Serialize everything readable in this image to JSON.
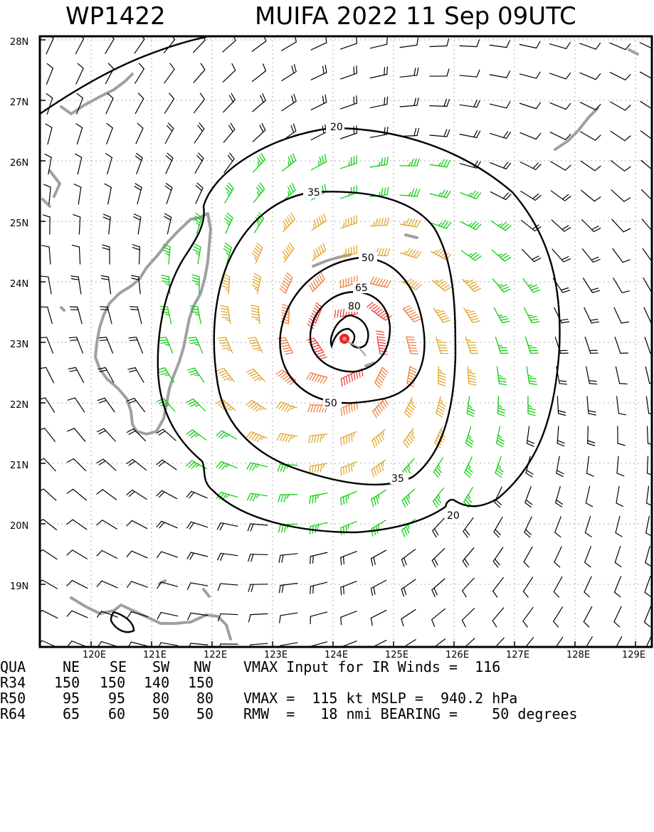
{
  "header": {
    "storm_id": "WP1422",
    "storm_title": "MUIFA 2022 11 Sep 09UTC"
  },
  "map": {
    "lat_labels": [
      "28N",
      "27N",
      "26N",
      "25N",
      "24N",
      "23N",
      "22N",
      "21N",
      "20N",
      "19N"
    ],
    "lon_labels": [
      "120E",
      "121E",
      "122E",
      "123E",
      "124E",
      "125E",
      "126E",
      "127E",
      "128E",
      "129E"
    ],
    "contour_labels": [
      "20",
      "35",
      "50",
      "65",
      "80",
      "50",
      "35",
      "20"
    ],
    "colors": {
      "below_34": "#000000",
      "r34": "#00cc00",
      "r50": "#e0a020",
      "r64": "#ee7733",
      "r80": "#ee3333",
      "land": "#a0a0a0",
      "center": "#ee2222"
    }
  },
  "stats": {
    "quadrant_header": {
      "label": "QUA",
      "ne": "NE",
      "se": "SE",
      "sw": "SW",
      "nw": "NW"
    },
    "r34": {
      "label": "R34",
      "ne": "150",
      "se": "150",
      "sw": "140",
      "nw": "150"
    },
    "r50": {
      "label": "R50",
      "ne": "95",
      "se": "95",
      "sw": "80",
      "nw": "80"
    },
    "r64": {
      "label": "R64",
      "ne": "65",
      "se": "60",
      "sw": "50",
      "nw": "50"
    },
    "vmax_input": "VMAX Input for IR Winds =  116",
    "vmax_mslp": "VMAX =  115 kt MSLP =  940.2 hPa",
    "rmw_bearing": "RMW  =   18 nmi BEARING =    50 degrees"
  }
}
